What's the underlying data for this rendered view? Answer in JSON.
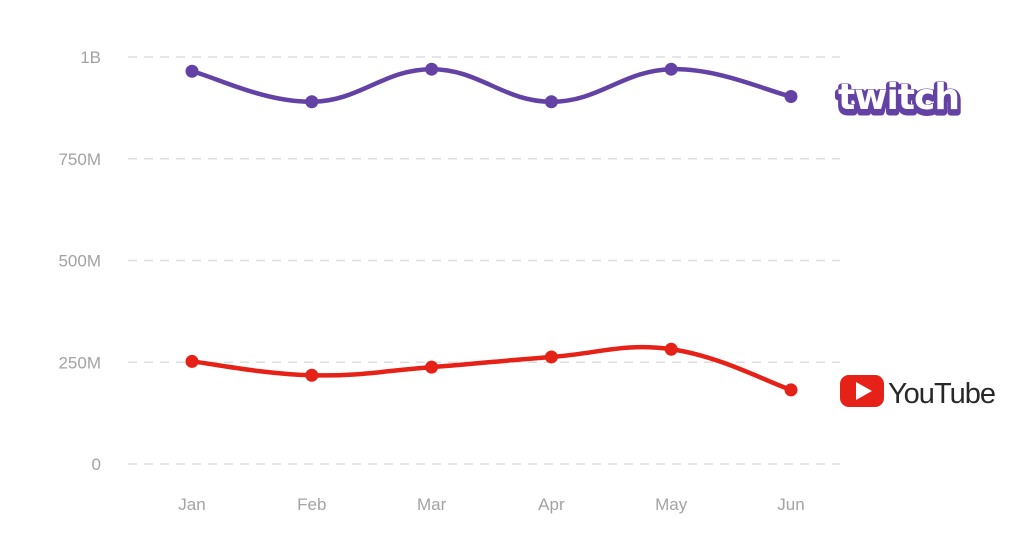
{
  "chart_data": {
    "type": "line",
    "title": "",
    "xlabel": "",
    "ylabel": "",
    "categories": [
      "Jan",
      "Feb",
      "Mar",
      "Apr",
      "May",
      "Jun"
    ],
    "ylim": [
      0,
      1000000000
    ],
    "yticks": [
      {
        "value": 0,
        "label": "0"
      },
      {
        "value": 250000000,
        "label": "250M"
      },
      {
        "value": 500000000,
        "label": "500M"
      },
      {
        "value": 750000000,
        "label": "750M"
      },
      {
        "value": 1000000000,
        "label": "1B"
      }
    ],
    "grid": true,
    "legend": "right, logos at line ends",
    "series": [
      {
        "name": "twitch",
        "label": "twitch",
        "color": "#6441a4",
        "values": [
          965000000,
          890000000,
          970000000,
          890000000,
          970000000,
          903000000
        ]
      },
      {
        "name": "YouTube",
        "label": "YouTube",
        "color": "#e62117",
        "values": [
          252000000,
          218000000,
          238000000,
          263000000,
          282000000,
          182000000
        ]
      }
    ]
  }
}
